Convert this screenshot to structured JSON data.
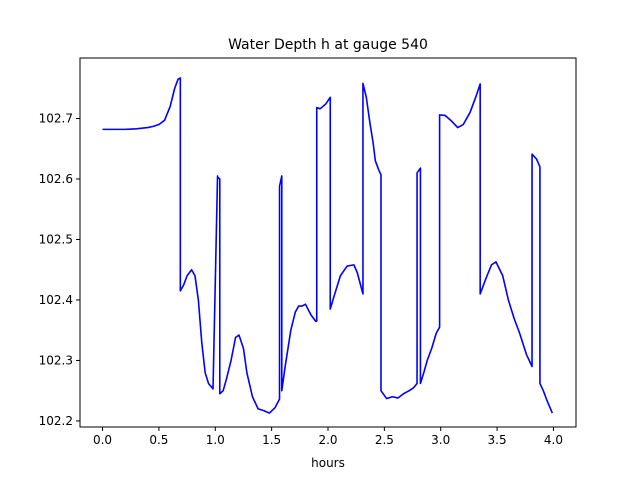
{
  "chart_data": {
    "type": "line",
    "title": "Water Depth h at gauge 540",
    "xlabel": "hours",
    "ylabel": "",
    "xlim": [
      -0.2,
      4.2
    ],
    "ylim": [
      102.19,
      102.8
    ],
    "xticks": [
      0.0,
      0.5,
      1.0,
      1.5,
      2.0,
      2.5,
      3.0,
      3.5,
      4.0
    ],
    "xtick_labels": [
      "0.0",
      "0.5",
      "1.0",
      "1.5",
      "2.0",
      "2.5",
      "3.0",
      "3.5",
      "4.0"
    ],
    "yticks": [
      102.2,
      102.3,
      102.4,
      102.5,
      102.6,
      102.7
    ],
    "ytick_labels": [
      "102.2",
      "102.3",
      "102.4",
      "102.5",
      "102.6",
      "102.7"
    ],
    "grid": false,
    "legend": "none",
    "series": [
      {
        "color": "#0000ff",
        "x": [
          0.0,
          0.1,
          0.2,
          0.3,
          0.4,
          0.45,
          0.5,
          0.55,
          0.6,
          0.64,
          0.67,
          0.69,
          0.69,
          0.72,
          0.75,
          0.79,
          0.82,
          0.85,
          0.88,
          0.91,
          0.94,
          0.98,
          1.02,
          1.02,
          1.04,
          1.04,
          1.07,
          1.1,
          1.14,
          1.18,
          1.21,
          1.25,
          1.28,
          1.33,
          1.38,
          1.43,
          1.48,
          1.53,
          1.57,
          1.57,
          1.59,
          1.59,
          1.62,
          1.67,
          1.71,
          1.74,
          1.77,
          1.8,
          1.85,
          1.89,
          1.9,
          1.9,
          1.93,
          1.98,
          2.02,
          2.02,
          2.06,
          2.11,
          2.17,
          2.23,
          2.26,
          2.31,
          2.31,
          2.34,
          2.37,
          2.4,
          2.42,
          2.45,
          2.47,
          2.47,
          2.52,
          2.57,
          2.62,
          2.67,
          2.72,
          2.76,
          2.79,
          2.79,
          2.82,
          2.82,
          2.85,
          2.88,
          2.92,
          2.96,
          2.99,
          2.99,
          3.04,
          3.1,
          3.15,
          3.2,
          3.26,
          3.31,
          3.35,
          3.35,
          3.4,
          3.45,
          3.49,
          3.55,
          3.6,
          3.65,
          3.7,
          3.76,
          3.81,
          3.81,
          3.85,
          3.88,
          3.88,
          3.91,
          3.94,
          3.99
        ],
        "y": [
          102.682,
          102.682,
          102.682,
          102.683,
          102.685,
          102.687,
          102.69,
          102.697,
          102.72,
          102.75,
          102.765,
          102.767,
          102.415,
          102.425,
          102.44,
          102.45,
          102.44,
          102.4,
          102.33,
          102.28,
          102.262,
          102.253,
          102.605,
          102.603,
          102.6,
          102.245,
          102.25,
          102.27,
          102.3,
          102.338,
          102.342,
          102.32,
          102.28,
          102.24,
          102.22,
          102.217,
          102.213,
          102.222,
          102.236,
          102.588,
          102.605,
          102.25,
          102.29,
          102.35,
          102.38,
          102.39,
          102.39,
          102.393,
          102.375,
          102.365,
          102.365,
          102.718,
          102.716,
          102.724,
          102.735,
          102.385,
          102.41,
          102.44,
          102.456,
          102.458,
          102.445,
          102.41,
          102.758,
          102.735,
          102.695,
          102.66,
          102.63,
          102.615,
          102.607,
          102.25,
          102.237,
          102.24,
          102.238,
          102.245,
          102.25,
          102.255,
          102.262,
          102.61,
          102.618,
          102.262,
          102.28,
          102.3,
          102.32,
          102.345,
          102.355,
          102.706,
          102.705,
          102.695,
          102.685,
          102.69,
          102.71,
          102.735,
          102.757,
          102.41,
          102.435,
          102.458,
          102.463,
          102.44,
          102.4,
          102.37,
          102.345,
          102.31,
          102.29,
          102.641,
          102.633,
          102.62,
          102.262,
          102.25,
          102.235,
          102.213
        ]
      }
    ]
  }
}
